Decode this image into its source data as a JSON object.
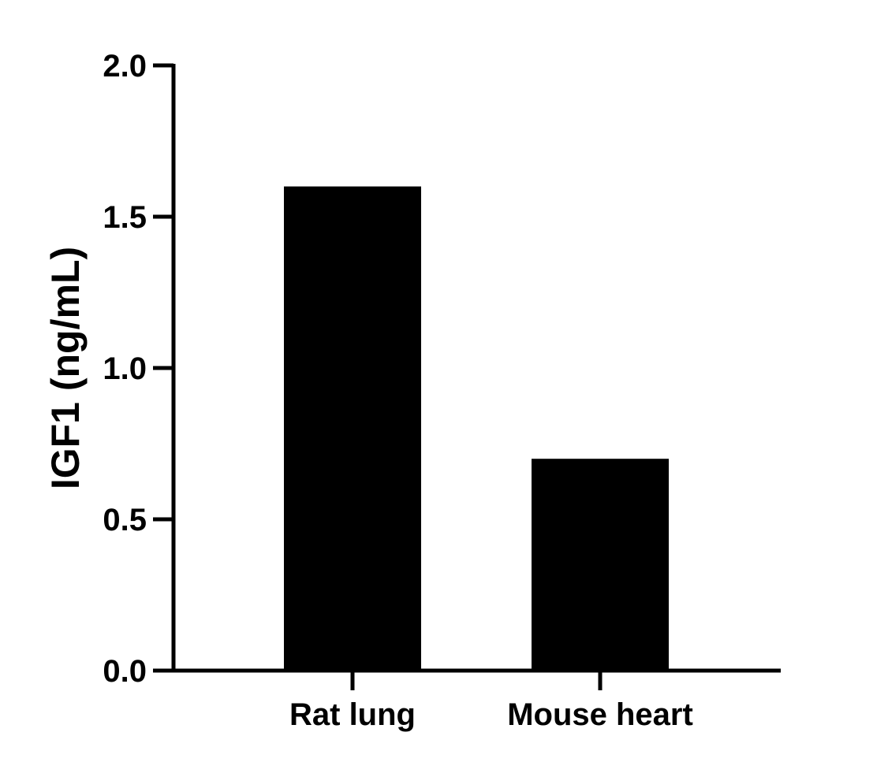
{
  "chart_data": {
    "type": "bar",
    "categories": [
      "Rat lung",
      "Mouse heart"
    ],
    "values": [
      1.6,
      0.7
    ],
    "title": "",
    "xlabel": "",
    "ylabel": "IGF1 (ng/mL)",
    "ylim": [
      0,
      2.0
    ],
    "yticks": [
      "0.0",
      "0.5",
      "1.0",
      "1.5",
      "2.0"
    ],
    "grid": false,
    "legend": "none",
    "bar_color": "#000000"
  }
}
